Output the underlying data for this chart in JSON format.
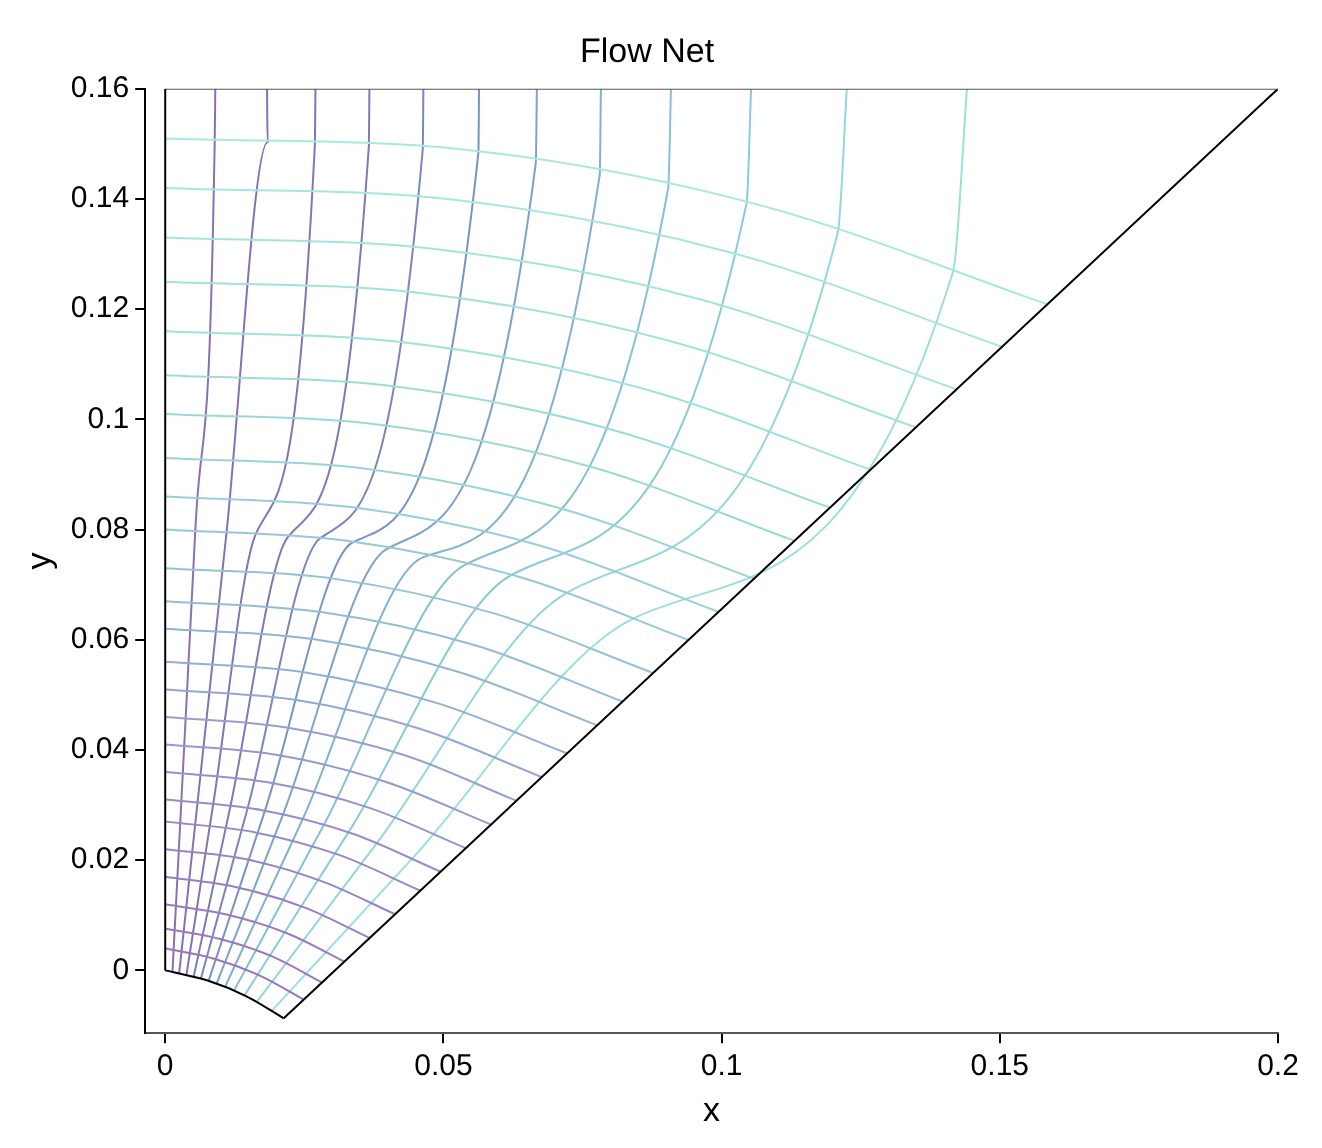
{
  "chart_data": {
    "type": "line",
    "title": "Flow Net",
    "xlabel": "x",
    "ylabel": "y",
    "xlim": [
      -0.0036,
      0.2
    ],
    "ylim": [
      -0.0114,
      0.16
    ],
    "xticks": [
      0,
      0.05,
      0.1,
      0.15,
      0.2
    ],
    "yticks": [
      0,
      0.02,
      0.04,
      0.06,
      0.08,
      0.1,
      0.12,
      0.14,
      0.16
    ],
    "legend": false,
    "series": [
      {
        "color": "#000000",
        "x": [
          0,
          0
        ],
        "values": [
          0,
          0.16
        ]
      },
      {
        "color": "#555555",
        "x": [
          0,
          0.2
        ],
        "values": [
          0.16,
          0.16
        ]
      },
      {
        "color": "#000000",
        "x": [
          0.0213,
          0.2
        ],
        "values": [
          -0.0087,
          0.16
        ]
      },
      {
        "color": "#000000",
        "x": [
          0,
          0.0075,
          0.0146,
          0.0213
        ],
        "values": [
          0,
          -0.0018,
          -0.0047,
          -0.0087
        ]
      },
      {
        "color": "#a8e8e2",
        "x": [
          0,
          0.0543,
          0.1072,
          0.1585
        ],
        "values": [
          0.151,
          0.1489,
          0.1388,
          0.1209
        ]
      },
      {
        "color": "#a6e6e0",
        "x": [
          0,
          0.0515,
          0.1016,
          0.1503
        ],
        "values": [
          0.142,
          0.1399,
          0.1303,
          0.1132
        ]
      },
      {
        "color": "#a4e4df",
        "x": [
          0,
          0.0488,
          0.0961,
          0.1421
        ],
        "values": [
          0.133,
          0.1309,
          0.1218,
          0.1055
        ]
      },
      {
        "color": "#a2e2de",
        "x": [
          0,
          0.0462,
          0.0912,
          0.1348
        ],
        "values": [
          0.125,
          0.1229,
          0.1141,
          0.0986
        ]
      },
      {
        "color": "#a0e0dd",
        "x": [
          0,
          0.0435,
          0.0858,
          0.1267
        ],
        "values": [
          0.116,
          0.1139,
          0.1056,
          0.0909
        ]
      },
      {
        "color": "#9edcdc",
        "x": [
          0,
          0.041,
          0.0808,
          0.1194
        ],
        "values": [
          0.108,
          0.106,
          0.098,
          0.084
        ]
      },
      {
        "color": "#9cd8db",
        "x": [
          0,
          0.0389,
          0.0765,
          0.113
        ],
        "values": [
          0.101,
          0.099,
          0.0914,
          0.078
        ]
      },
      {
        "color": "#9ad3da",
        "x": [
          0,
          0.0364,
          0.0716,
          0.1058
        ],
        "values": [
          0.093,
          0.091,
          0.0837,
          0.0711
        ]
      },
      {
        "color": "#98ced9",
        "x": [
          0,
          0.0341,
          0.0673,
          0.0994
        ],
        "values": [
          0.086,
          0.084,
          0.0771,
          0.0651
        ]
      },
      {
        "color": "#96c8d8",
        "x": [
          0,
          0.0323,
          0.0637,
          0.094
        ],
        "values": [
          0.08,
          0.078,
          0.0714,
          0.06
        ]
      },
      {
        "color": "#94c2d7",
        "x": [
          0,
          0.0302,
          0.0594,
          0.0876
        ],
        "values": [
          0.073,
          0.0711,
          0.0647,
          0.054
        ]
      },
      {
        "color": "#93bcd6",
        "x": [
          0,
          0.0283,
          0.0557,
          0.0822
        ],
        "values": [
          0.067,
          0.065,
          0.059,
          0.0488
        ]
      },
      {
        "color": "#92b5d5",
        "x": [
          0,
          0.0268,
          0.0526,
          0.0776
        ],
        "values": [
          0.062,
          0.0601,
          0.0542,
          0.0445
        ]
      },
      {
        "color": "#92aed4",
        "x": [
          0,
          0.0249,
          0.0489,
          0.0722
        ],
        "values": [
          0.056,
          0.0541,
          0.0485,
          0.0394
        ]
      },
      {
        "color": "#92a7d2",
        "x": [
          0,
          0.0233,
          0.0459,
          0.0676
        ],
        "values": [
          0.051,
          0.0491,
          0.0438,
          0.0351
        ]
      },
      {
        "color": "#93a0d0",
        "x": [
          0,
          0.0218,
          0.0429,
          0.0631
        ],
        "values": [
          0.046,
          0.0441,
          0.0391,
          0.0308
        ]
      },
      {
        "color": "#9499ce",
        "x": [
          0,
          0.0202,
          0.0397,
          0.0585
        ],
        "values": [
          0.041,
          0.0391,
          0.0342,
          0.0265
        ]
      },
      {
        "color": "#9593cc",
        "x": [
          0,
          0.0187,
          0.0367,
          0.054
        ],
        "values": [
          0.036,
          0.0341,
          0.0295,
          0.0222
        ]
      },
      {
        "color": "#968dca",
        "x": [
          0,
          0.0172,
          0.0337,
          0.0495
        ],
        "values": [
          0.031,
          0.0291,
          0.0248,
          0.0179
        ]
      },
      {
        "color": "#9788c8",
        "x": [
          0,
          0.0159,
          0.0311,
          0.0458
        ],
        "values": [
          0.027,
          0.0251,
          0.021,
          0.0145
        ]
      },
      {
        "color": "#9883c6",
        "x": [
          0,
          0.0144,
          0.0281,
          0.0413
        ],
        "values": [
          0.022,
          0.0202,
          0.0162,
          0.0102
        ]
      },
      {
        "color": "#997ec4",
        "x": [
          0,
          0.0128,
          0.0251,
          0.0367
        ],
        "values": [
          0.017,
          0.0151,
          0.0114,
          0.0059
        ]
      },
      {
        "color": "#9a7ac2",
        "x": [
          0,
          0.0112,
          0.022,
          0.0322
        ],
        "values": [
          0.012,
          0.0101,
          0.0067,
          0.0016
        ]
      },
      {
        "color": "#9b77c0",
        "x": [
          0,
          0.0099,
          0.0193,
          0.0282
        ],
        "values": [
          0.0076,
          0.0057,
          0.0025,
          -0.0022
        ]
      },
      {
        "color": "#9c74be",
        "x": [
          0,
          0.0088,
          0.0171,
          0.0249
        ],
        "values": [
          0.004,
          0.0021,
          -0.001,
          -0.0053
        ]
      },
      {
        "color": "#8e6fae",
        "x": [
          0.0013,
          0.0029,
          0.0054,
          0.0089,
          0.009
        ],
        "values": [
          -0.0003,
          0.0307,
          0.0797,
          0.1506,
          0.16
        ]
      },
      {
        "color": "#8a70b0",
        "x": [
          0.0025,
          0.0058,
          0.011,
          0.0184,
          0.0183
        ],
        "values": [
          -0.0006,
          0.0304,
          0.0793,
          0.1503,
          0.16
        ]
      },
      {
        "color": "#8574b3",
        "x": [
          0.0038,
          0.0086,
          0.0162,
          0.0269,
          0.027
        ],
        "values": [
          -0.0009,
          0.03,
          0.079,
          0.1499,
          0.16
        ]
      },
      {
        "color": "#7e7ab6",
        "x": [
          0.0051,
          0.0117,
          0.022,
          0.0366,
          0.0367
        ],
        "values": [
          -0.0012,
          0.0297,
          0.0786,
          0.1496,
          0.16
        ]
      },
      {
        "color": "#7a86bc",
        "x": [
          0.0064,
          0.0148,
          0.0277,
          0.0463,
          0.0464
        ],
        "values": [
          -0.0015,
          0.0294,
          0.0783,
          0.1492,
          0.16
        ]
      },
      {
        "color": "#7a94c2",
        "x": [
          0.0078,
          0.0179,
          0.0337,
          0.0563,
          0.0564
        ],
        "values": [
          -0.0019,
          0.0289,
          0.0777,
          0.1485,
          0.16
        ]
      },
      {
        "color": "#7ca3c8",
        "x": [
          0.0092,
          0.0211,
          0.0397,
          0.0666,
          0.0668
        ],
        "values": [
          -0.0025,
          0.0281,
          0.0764,
          0.1465,
          0.16
        ]
      },
      {
        "color": "#80b2cd",
        "x": [
          0.0107,
          0.0246,
          0.0464,
          0.0781,
          0.0783
        ],
        "values": [
          -0.0031,
          0.0272,
          0.075,
          0.1444,
          0.16
        ]
      },
      {
        "color": "#86c0d2",
        "x": [
          0.0123,
          0.0284,
          0.0537,
          0.0904,
          0.0909
        ],
        "values": [
          -0.0038,
          0.0262,
          0.0735,
          0.142,
          0.16
        ]
      },
      {
        "color": "#8ccbd6",
        "x": [
          0.0142,
          0.0329,
          0.0621,
          0.1045,
          0.1053
        ],
        "values": [
          -0.0046,
          0.025,
          0.0717,
          0.1393,
          0.16
        ]
      },
      {
        "color": "#94d6da",
        "x": [
          0.0164,
          0.0379,
          0.0718,
          0.1209,
          0.1225
        ],
        "values": [
          -0.0058,
          0.0229,
          0.0683,
          0.134,
          0.16
        ]
      },
      {
        "color": "#9cdfdd",
        "x": [
          0.0191,
          0.0443,
          0.084,
          0.1416,
          0.1441
        ],
        "values": [
          -0.0074,
          0.0202,
          0.0638,
          0.1268,
          0.16
        ]
      }
    ]
  }
}
